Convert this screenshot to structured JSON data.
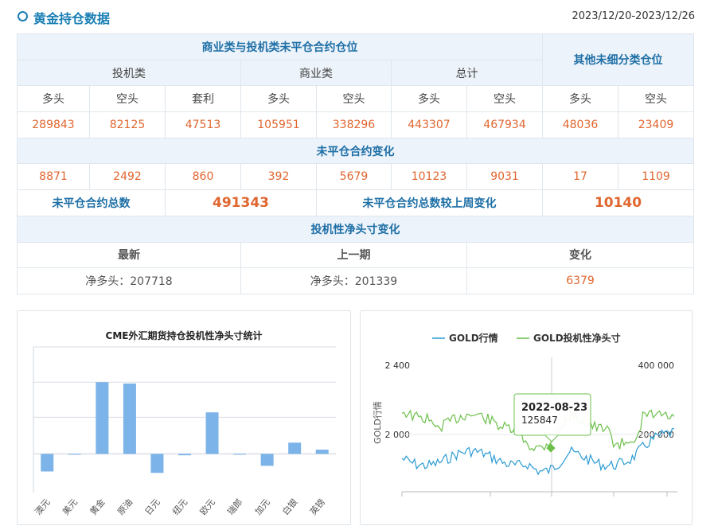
{
  "header": {
    "title": "黄金持仓数据",
    "date_range": "2023/12/20-2023/12/26"
  },
  "table": {
    "group_noncommercial_commercial": "商业类与投机类未平仓合约仓位",
    "group_other": "其他未细分类仓位",
    "speculative": "投机类",
    "commercial": "商业类",
    "total": "总计",
    "long": "多头",
    "short": "空头",
    "spread": "套利",
    "positions": [
      "289843",
      "82125",
      "47513",
      "105951",
      "338296",
      "443307",
      "467934",
      "48036",
      "23409"
    ],
    "change_title": "未平仓合约变化",
    "changes": [
      "8871",
      "2492",
      "860",
      "392",
      "5679",
      "10123",
      "9031",
      "17",
      "1109"
    ],
    "oi_total_label": "未平仓合约总数",
    "oi_total": "491343",
    "oi_change_label": "未平仓合约总数较上周变化",
    "oi_change": "10140",
    "net_title": "投机性净头寸变化",
    "latest_label": "最新",
    "previous_label": "上一期",
    "change_label": "变化",
    "latest_value": "净多头：207718",
    "previous_value": "净多头：201339",
    "net_change": "6379"
  },
  "colors": {
    "accent": "#1a7fb4",
    "number": "#e0662f",
    "bar": "#7cb3e8",
    "line_gold": "#2b9bd3",
    "line_net": "#6cc04a"
  },
  "chart_data": [
    {
      "type": "bar",
      "title": "CME外汇期货持仓投机性净头寸统计",
      "categories": [
        "澳元",
        "美元",
        "黄金",
        "原油",
        "日元",
        "纽元",
        "欧元",
        "瑞郎",
        "加元",
        "白银",
        "英镑"
      ],
      "values": [
        -25,
        0,
        102,
        100,
        -27,
        -2,
        59,
        0,
        -17,
        16,
        6
      ],
      "ylim": [
        -55,
        152
      ]
    },
    {
      "type": "line",
      "series": [
        {
          "name": "GOLD行情"
        },
        {
          "name": "GOLD投机性净头寸"
        }
      ],
      "ylabel": "GOLD行情",
      "yticks_left": [
        "2 400",
        "2 000"
      ],
      "yticks_right": [
        "400 000",
        "200 000"
      ],
      "tooltip": {
        "date": "2022-08-23",
        "value": "125847"
      }
    }
  ]
}
